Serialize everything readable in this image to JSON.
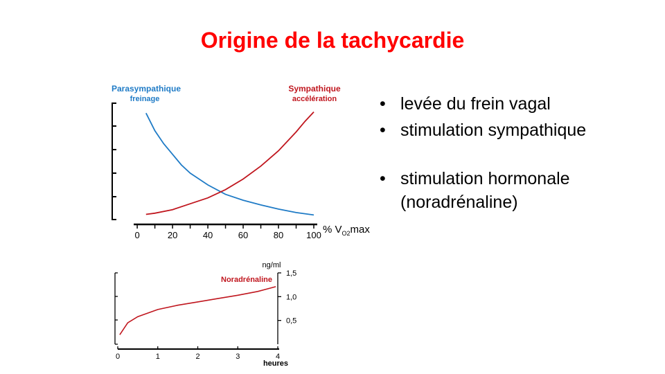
{
  "slide": {
    "title": "Origine de la tachycardie",
    "bullets": [
      "levée du frein vagal",
      "stimulation sympathique",
      "stimulation hormonale (noradrénaline)"
    ]
  },
  "chart_data": [
    {
      "type": "line",
      "xlabel": "% VO2max",
      "xlabel_parts": {
        "prefix": "% V",
        "sub": "O2",
        "suffix": "max"
      },
      "xticks": [
        0,
        20,
        40,
        60,
        80,
        100
      ],
      "xlim": [
        -2,
        100
      ],
      "ylim": [
        0,
        10
      ],
      "ylabel": "",
      "yticks_labeled": false,
      "series": [
        {
          "name": "Parasympathique",
          "sub": "freinage",
          "color": "#1f7bc6",
          "x": [
            5,
            10,
            15,
            20,
            25,
            30,
            40,
            50,
            60,
            70,
            80,
            90,
            100
          ],
          "y": [
            9.1,
            7.6,
            6.5,
            5.6,
            4.7,
            4.0,
            3.0,
            2.2,
            1.7,
            1.3,
            0.95,
            0.65,
            0.45
          ]
        },
        {
          "name": "Sympathique",
          "sub": "accélération",
          "color": "#c0161e",
          "x": [
            5,
            10,
            20,
            30,
            40,
            50,
            60,
            70,
            80,
            90,
            95,
            100
          ],
          "y": [
            0.5,
            0.6,
            0.9,
            1.4,
            1.9,
            2.6,
            3.5,
            4.6,
            5.9,
            7.5,
            8.4,
            9.2
          ]
        }
      ]
    },
    {
      "type": "line",
      "xlabel": "heures",
      "ylabel": "ng/ml",
      "xticks": [
        0,
        1,
        2,
        3,
        4
      ],
      "yticks": [
        "0,5",
        "1,0",
        "1,5"
      ],
      "ytick_values": [
        0.5,
        1.0,
        1.5
      ],
      "xlim": [
        0,
        4
      ],
      "ylim": [
        0,
        1.5
      ],
      "series": [
        {
          "name": "Noradrénaline",
          "color": "#c0161e",
          "x": [
            0.05,
            0.25,
            0.5,
            1,
            1.5,
            2,
            2.5,
            3,
            3.5,
            3.95
          ],
          "y": [
            0.2,
            0.45,
            0.58,
            0.73,
            0.82,
            0.89,
            0.96,
            1.03,
            1.11,
            1.21
          ]
        }
      ]
    }
  ]
}
